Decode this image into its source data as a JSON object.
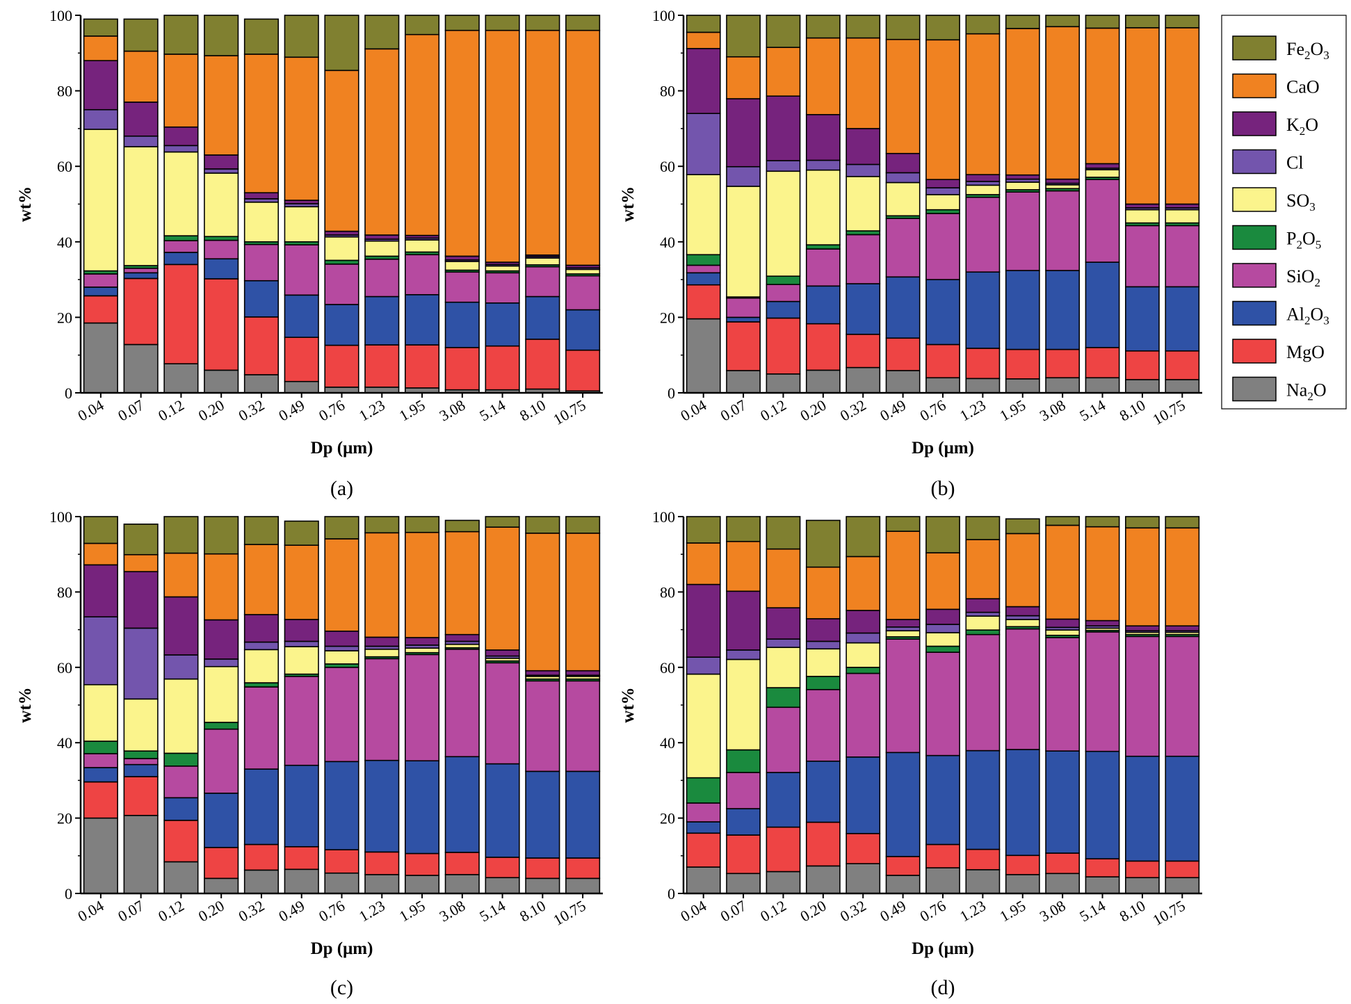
{
  "chart_data": {
    "type": "bar",
    "stacked": true,
    "components": [
      {
        "name": "Na2O",
        "label_main": "Na",
        "label_sub": "2",
        "label_tail": "O",
        "color": "#808080"
      },
      {
        "name": "MgO",
        "label_main": "MgO",
        "label_sub": "",
        "label_tail": "",
        "color": "#ee4444"
      },
      {
        "name": "Al2O3",
        "label_main": "Al",
        "label_sub": "2",
        "label_tail": "O",
        "label_sub2": "3",
        "color": "#2f52a6"
      },
      {
        "name": "SiO2",
        "label_main": "SiO",
        "label_sub": "2",
        "label_tail": "",
        "color": "#b64aa0"
      },
      {
        "name": "P2O5",
        "label_main": "P",
        "label_sub": "2",
        "label_tail": "O",
        "label_sub2": "5",
        "color": "#1a8a3e"
      },
      {
        "name": "SO3",
        "label_main": "SO",
        "label_sub": "3",
        "label_tail": "",
        "color": "#fbf48c"
      },
      {
        "name": "Cl",
        "label_main": "Cl",
        "label_sub": "",
        "label_tail": "",
        "color": "#7355ad"
      },
      {
        "name": "K2O",
        "label_main": "K",
        "label_sub": "2",
        "label_tail": "O",
        "color": "#76237d"
      },
      {
        "name": "CaO",
        "label_main": "CaO",
        "label_sub": "",
        "label_tail": "",
        "color": "#f08221"
      },
      {
        "name": "Fe2O3",
        "label_main": "Fe",
        "label_sub": "2",
        "label_tail": "O",
        "label_sub2": "3",
        "color": "#808030"
      }
    ],
    "legend_order": [
      "Fe2O3",
      "CaO",
      "K2O",
      "Cl",
      "SO3",
      "P2O5",
      "SiO2",
      "Al2O3",
      "MgO",
      "Na2O"
    ],
    "legend_position": "right",
    "categories": [
      "0.04",
      "0.07",
      "0.12",
      "0.20",
      "0.32",
      "0.49",
      "0.76",
      "1.23",
      "1.95",
      "3.08",
      "5.14",
      "8.10",
      "10.75"
    ],
    "xlabel": "Dp (μm)",
    "ylabel": "wt%",
    "ylim": [
      0,
      100
    ],
    "yticks": [
      "0",
      "20",
      "40",
      "60",
      "80",
      "100"
    ],
    "panels": [
      {
        "label": "(a)",
        "series": [
          {
            "name": "Na2O",
            "values": [
              18.5,
              12.8,
              7.7,
              6.0,
              4.8,
              3.0,
              1.5,
              1.5,
              1.3,
              0.8,
              0.8,
              1.0,
              0.5
            ]
          },
          {
            "name": "MgO",
            "values": [
              7.2,
              17.5,
              26.3,
              24.2,
              15.3,
              11.7,
              11.1,
              11.2,
              11.4,
              11.2,
              11.6,
              13.2,
              10.8
            ]
          },
          {
            "name": "Al2O3",
            "values": [
              2.3,
              1.5,
              3.2,
              5.3,
              9.6,
              11.2,
              10.8,
              12.8,
              13.3,
              12.0,
              11.4,
              11.3,
              10.7
            ]
          },
          {
            "name": "SiO2",
            "values": [
              3.5,
              1.2,
              3.1,
              4.9,
              9.6,
              13.3,
              10.7,
              9.9,
              10.6,
              8.0,
              8.0,
              7.9,
              9.0
            ]
          },
          {
            "name": "P2O5",
            "values": [
              0.8,
              0.7,
              1.3,
              1.0,
              0.7,
              0.8,
              1.0,
              0.8,
              0.7,
              0.5,
              0.5,
              0.5,
              0.5
            ]
          },
          {
            "name": "SO3",
            "values": [
              37.5,
              31.5,
              22.2,
              16.8,
              10.5,
              9.3,
              6.2,
              4.0,
              3.2,
              2.3,
              1.3,
              1.8,
              1.2
            ]
          },
          {
            "name": "Cl",
            "values": [
              5.2,
              2.8,
              1.7,
              1.1,
              0.9,
              0.8,
              0.5,
              0.5,
              0.5,
              0.4,
              0.4,
              0.4,
              0.4
            ]
          },
          {
            "name": "K2O",
            "values": [
              13.0,
              9.0,
              4.9,
              3.7,
              1.6,
              0.9,
              1.0,
              1.1,
              0.7,
              1.0,
              0.6,
              0.4,
              0.7
            ]
          },
          {
            "name": "CaO",
            "values": [
              6.5,
              13.5,
              19.3,
              26.3,
              36.7,
              37.9,
              42.6,
              49.3,
              53.2,
              59.8,
              61.4,
              59.5,
              62.2
            ]
          },
          {
            "name": "Fe2O3",
            "values": [
              4.5,
              8.5,
              10.3,
              10.7,
              9.3,
              11.1,
              14.6,
              8.9,
              5.9,
              4.0,
              4.0,
              4.0,
              4.0
            ]
          }
        ]
      },
      {
        "label": "(b)",
        "series": [
          {
            "name": "Na2O",
            "values": [
              19.6,
              5.9,
              5.0,
              6.0,
              6.7,
              5.9,
              4.0,
              3.8,
              3.7,
              4.0,
              4.0,
              3.5,
              3.5
            ]
          },
          {
            "name": "MgO",
            "values": [
              9.0,
              12.9,
              14.8,
              12.3,
              8.8,
              8.6,
              8.8,
              8.0,
              7.8,
              7.5,
              8.0,
              7.6,
              7.6
            ]
          },
          {
            "name": "Al2O3",
            "values": [
              3.2,
              1.2,
              4.4,
              10.0,
              13.4,
              16.2,
              17.2,
              20.2,
              20.9,
              20.9,
              22.6,
              17.0,
              17.0
            ]
          },
          {
            "name": "SiO2",
            "values": [
              2.0,
              5.1,
              4.5,
              9.8,
              13.0,
              15.5,
              17.5,
              19.8,
              20.8,
              21.1,
              21.9,
              16.2,
              16.2
            ]
          },
          {
            "name": "P2O5",
            "values": [
              2.8,
              0.3,
              2.2,
              1.1,
              1.0,
              0.7,
              1.0,
              0.7,
              0.6,
              0.6,
              0.6,
              0.7,
              0.7
            ]
          },
          {
            "name": "SO3",
            "values": [
              21.2,
              29.3,
              27.8,
              19.8,
              14.4,
              8.8,
              4.0,
              2.5,
              2.0,
              1.0,
              2.0,
              3.5,
              3.5
            ]
          },
          {
            "name": "Cl",
            "values": [
              16.2,
              5.2,
              2.8,
              2.6,
              3.2,
              2.6,
              1.8,
              1.0,
              0.8,
              0.4,
              0.4,
              0.5,
              0.5
            ]
          },
          {
            "name": "K2O",
            "values": [
              17.2,
              18.0,
              17.1,
              12.1,
              9.5,
              5.1,
              2.2,
              1.8,
              1.1,
              1.1,
              1.2,
              1.0,
              1.0
            ]
          },
          {
            "name": "CaO",
            "values": [
              4.3,
              11.1,
              12.9,
              20.3,
              24.0,
              30.2,
              37.0,
              37.3,
              38.8,
              40.4,
              35.9,
              46.7,
              46.7
            ]
          },
          {
            "name": "Fe2O3",
            "values": [
              4.5,
              11.0,
              8.5,
              6.0,
              6.0,
              6.4,
              6.5,
              5.1,
              3.5,
              3.0,
              3.4,
              3.3,
              3.3
            ]
          }
        ]
      },
      {
        "label": "(c)",
        "series": [
          {
            "name": "Na2O",
            "values": [
              20.0,
              20.7,
              8.4,
              4.0,
              6.2,
              6.4,
              5.4,
              5.0,
              4.8,
              5.0,
              4.2,
              4.0,
              4.0
            ]
          },
          {
            "name": "MgO",
            "values": [
              9.6,
              10.3,
              11.0,
              8.2,
              6.8,
              6.0,
              6.2,
              6.0,
              5.8,
              5.9,
              5.4,
              5.4,
              5.4
            ]
          },
          {
            "name": "Al2O3",
            "values": [
              3.8,
              3.2,
              6.0,
              14.4,
              20.0,
              21.6,
              23.4,
              24.3,
              24.6,
              25.4,
              24.8,
              23.0,
              23.0
            ]
          },
          {
            "name": "SiO2",
            "values": [
              3.7,
              1.6,
              8.4,
              17.0,
              21.8,
              23.6,
              25.0,
              27.0,
              28.2,
              28.5,
              26.8,
              24.0,
              24.0
            ]
          },
          {
            "name": "P2O5",
            "values": [
              3.3,
              2.0,
              3.4,
              1.8,
              1.1,
              0.6,
              0.9,
              0.5,
              0.5,
              0.4,
              0.5,
              0.5,
              0.5
            ]
          },
          {
            "name": "SO3",
            "values": [
              15.0,
              13.8,
              19.7,
              14.8,
              8.8,
              7.3,
              3.5,
              2.0,
              1.2,
              0.9,
              0.7,
              0.7,
              0.7
            ]
          },
          {
            "name": "Cl",
            "values": [
              18.0,
              18.8,
              6.4,
              2.0,
              2.0,
              1.4,
              1.2,
              0.8,
              0.8,
              0.8,
              0.6,
              0.3,
              0.3
            ]
          },
          {
            "name": "K2O",
            "values": [
              13.8,
              15.0,
              15.4,
              10.4,
              7.3,
              5.8,
              4.0,
              2.4,
              2.0,
              1.8,
              1.6,
              1.2,
              1.2
            ]
          },
          {
            "name": "CaO",
            "values": [
              5.7,
              4.5,
              11.6,
              17.5,
              18.6,
              19.7,
              24.5,
              27.7,
              27.9,
              27.3,
              32.6,
              36.5,
              36.5
            ]
          },
          {
            "name": "Fe2O3",
            "values": [
              7.1,
              8.1,
              9.7,
              9.9,
              7.4,
              6.4,
              5.9,
              4.3,
              4.2,
              3.0,
              2.8,
              4.4,
              4.4
            ]
          }
        ]
      },
      {
        "label": "(d)",
        "series": [
          {
            "name": "Na2O",
            "values": [
              7.0,
              5.3,
              5.8,
              7.3,
              7.9,
              4.8,
              6.8,
              6.3,
              5.0,
              5.3,
              4.4,
              4.2,
              4.2
            ]
          },
          {
            "name": "MgO",
            "values": [
              9.0,
              10.2,
              11.8,
              11.6,
              8.0,
              5.0,
              6.2,
              5.4,
              5.1,
              5.4,
              4.8,
              4.4,
              4.4
            ]
          },
          {
            "name": "Al2O3",
            "values": [
              3.0,
              7.0,
              14.5,
              16.2,
              20.3,
              27.6,
              23.6,
              26.2,
              28.1,
              27.1,
              28.5,
              27.8,
              27.8
            ]
          },
          {
            "name": "SiO2",
            "values": [
              5.0,
              9.6,
              17.3,
              19.0,
              22.2,
              30.1,
              27.4,
              30.8,
              32.0,
              30.1,
              31.7,
              31.8,
              31.8
            ]
          },
          {
            "name": "P2O5",
            "values": [
              6.7,
              6.0,
              5.2,
              3.5,
              1.6,
              0.6,
              1.6,
              1.2,
              0.6,
              0.6,
              0.4,
              0.5,
              0.5
            ]
          },
          {
            "name": "SO3",
            "values": [
              27.5,
              24.0,
              10.7,
              7.3,
              6.5,
              1.6,
              3.6,
              3.7,
              1.9,
              1.4,
              0.6,
              0.6,
              0.6
            ]
          },
          {
            "name": "Cl",
            "values": [
              4.5,
              2.5,
              2.2,
              2.0,
              2.6,
              1.0,
              2.2,
              1.0,
              1.0,
              0.7,
              0.6,
              0.4,
              0.4
            ]
          },
          {
            "name": "K2O",
            "values": [
              19.3,
              15.6,
              8.3,
              6.0,
              6.0,
              2.0,
              4.0,
              3.6,
              2.4,
              2.2,
              1.4,
              1.3,
              1.3
            ]
          },
          {
            "name": "CaO",
            "values": [
              11.0,
              13.2,
              15.6,
              13.7,
              14.3,
              23.4,
              15.0,
              15.7,
              19.4,
              24.9,
              24.9,
              26.0,
              26.0
            ]
          },
          {
            "name": "Fe2O3",
            "values": [
              7.0,
              6.6,
              8.6,
              12.4,
              10.6,
              3.9,
              9.6,
              6.1,
              3.9,
              2.3,
              2.7,
              3.0,
              3.0
            ]
          }
        ]
      }
    ]
  }
}
